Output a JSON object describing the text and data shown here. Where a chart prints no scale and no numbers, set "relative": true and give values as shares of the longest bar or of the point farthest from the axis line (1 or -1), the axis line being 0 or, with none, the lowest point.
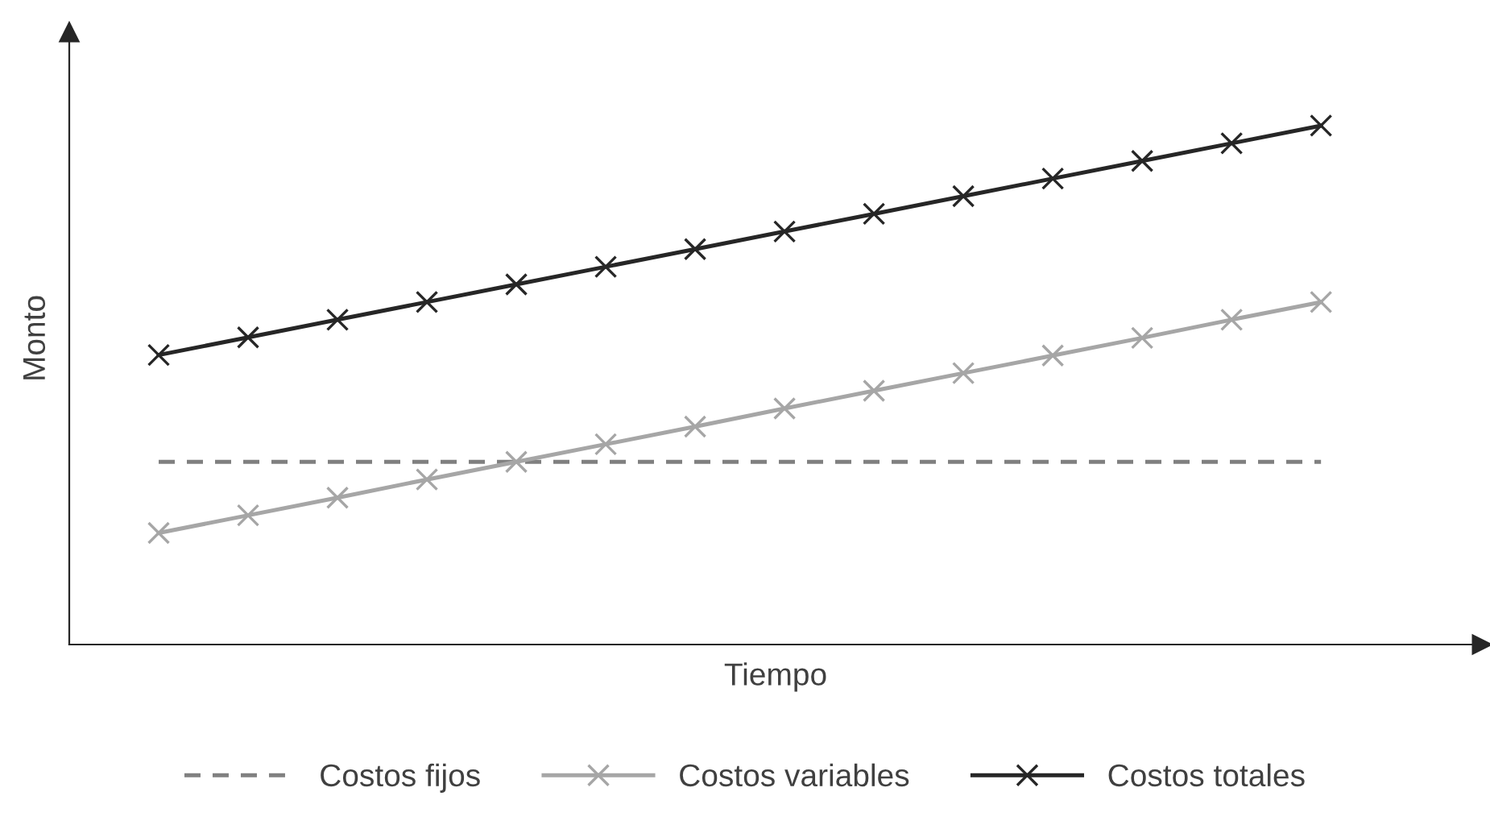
{
  "chart_data": {
    "type": "line",
    "relative": true,
    "xlabel": "Tiempo",
    "ylabel": "Monto",
    "categories": [
      null,
      null,
      null,
      null,
      null,
      null,
      null,
      null,
      null,
      null,
      null,
      null,
      null,
      null
    ],
    "series": [
      {
        "name": "Costos fijos",
        "color": "#808080",
        "line_style": "dashed",
        "marker": "none",
        "values": [
          0.352,
          0.352,
          0.352,
          0.352,
          0.352,
          0.352,
          0.352,
          0.352,
          0.352,
          0.352,
          0.352,
          0.352,
          0.352,
          0.352
        ]
      },
      {
        "name": "Costos variables",
        "color": "#a6a6a6",
        "line_style": "solid",
        "marker": "cross",
        "values": [
          0.215,
          0.249,
          0.283,
          0.318,
          0.352,
          0.386,
          0.42,
          0.455,
          0.489,
          0.523,
          0.557,
          0.591,
          0.626,
          0.66
        ]
      },
      {
        "name": "Costos totales",
        "color": "#262626",
        "line_style": "solid",
        "marker": "cross",
        "values": [
          0.558,
          0.592,
          0.626,
          0.66,
          0.694,
          0.728,
          0.762,
          0.796,
          0.83,
          0.864,
          0.898,
          0.932,
          0.966,
          1.0
        ]
      }
    ],
    "legend": "bottom"
  }
}
